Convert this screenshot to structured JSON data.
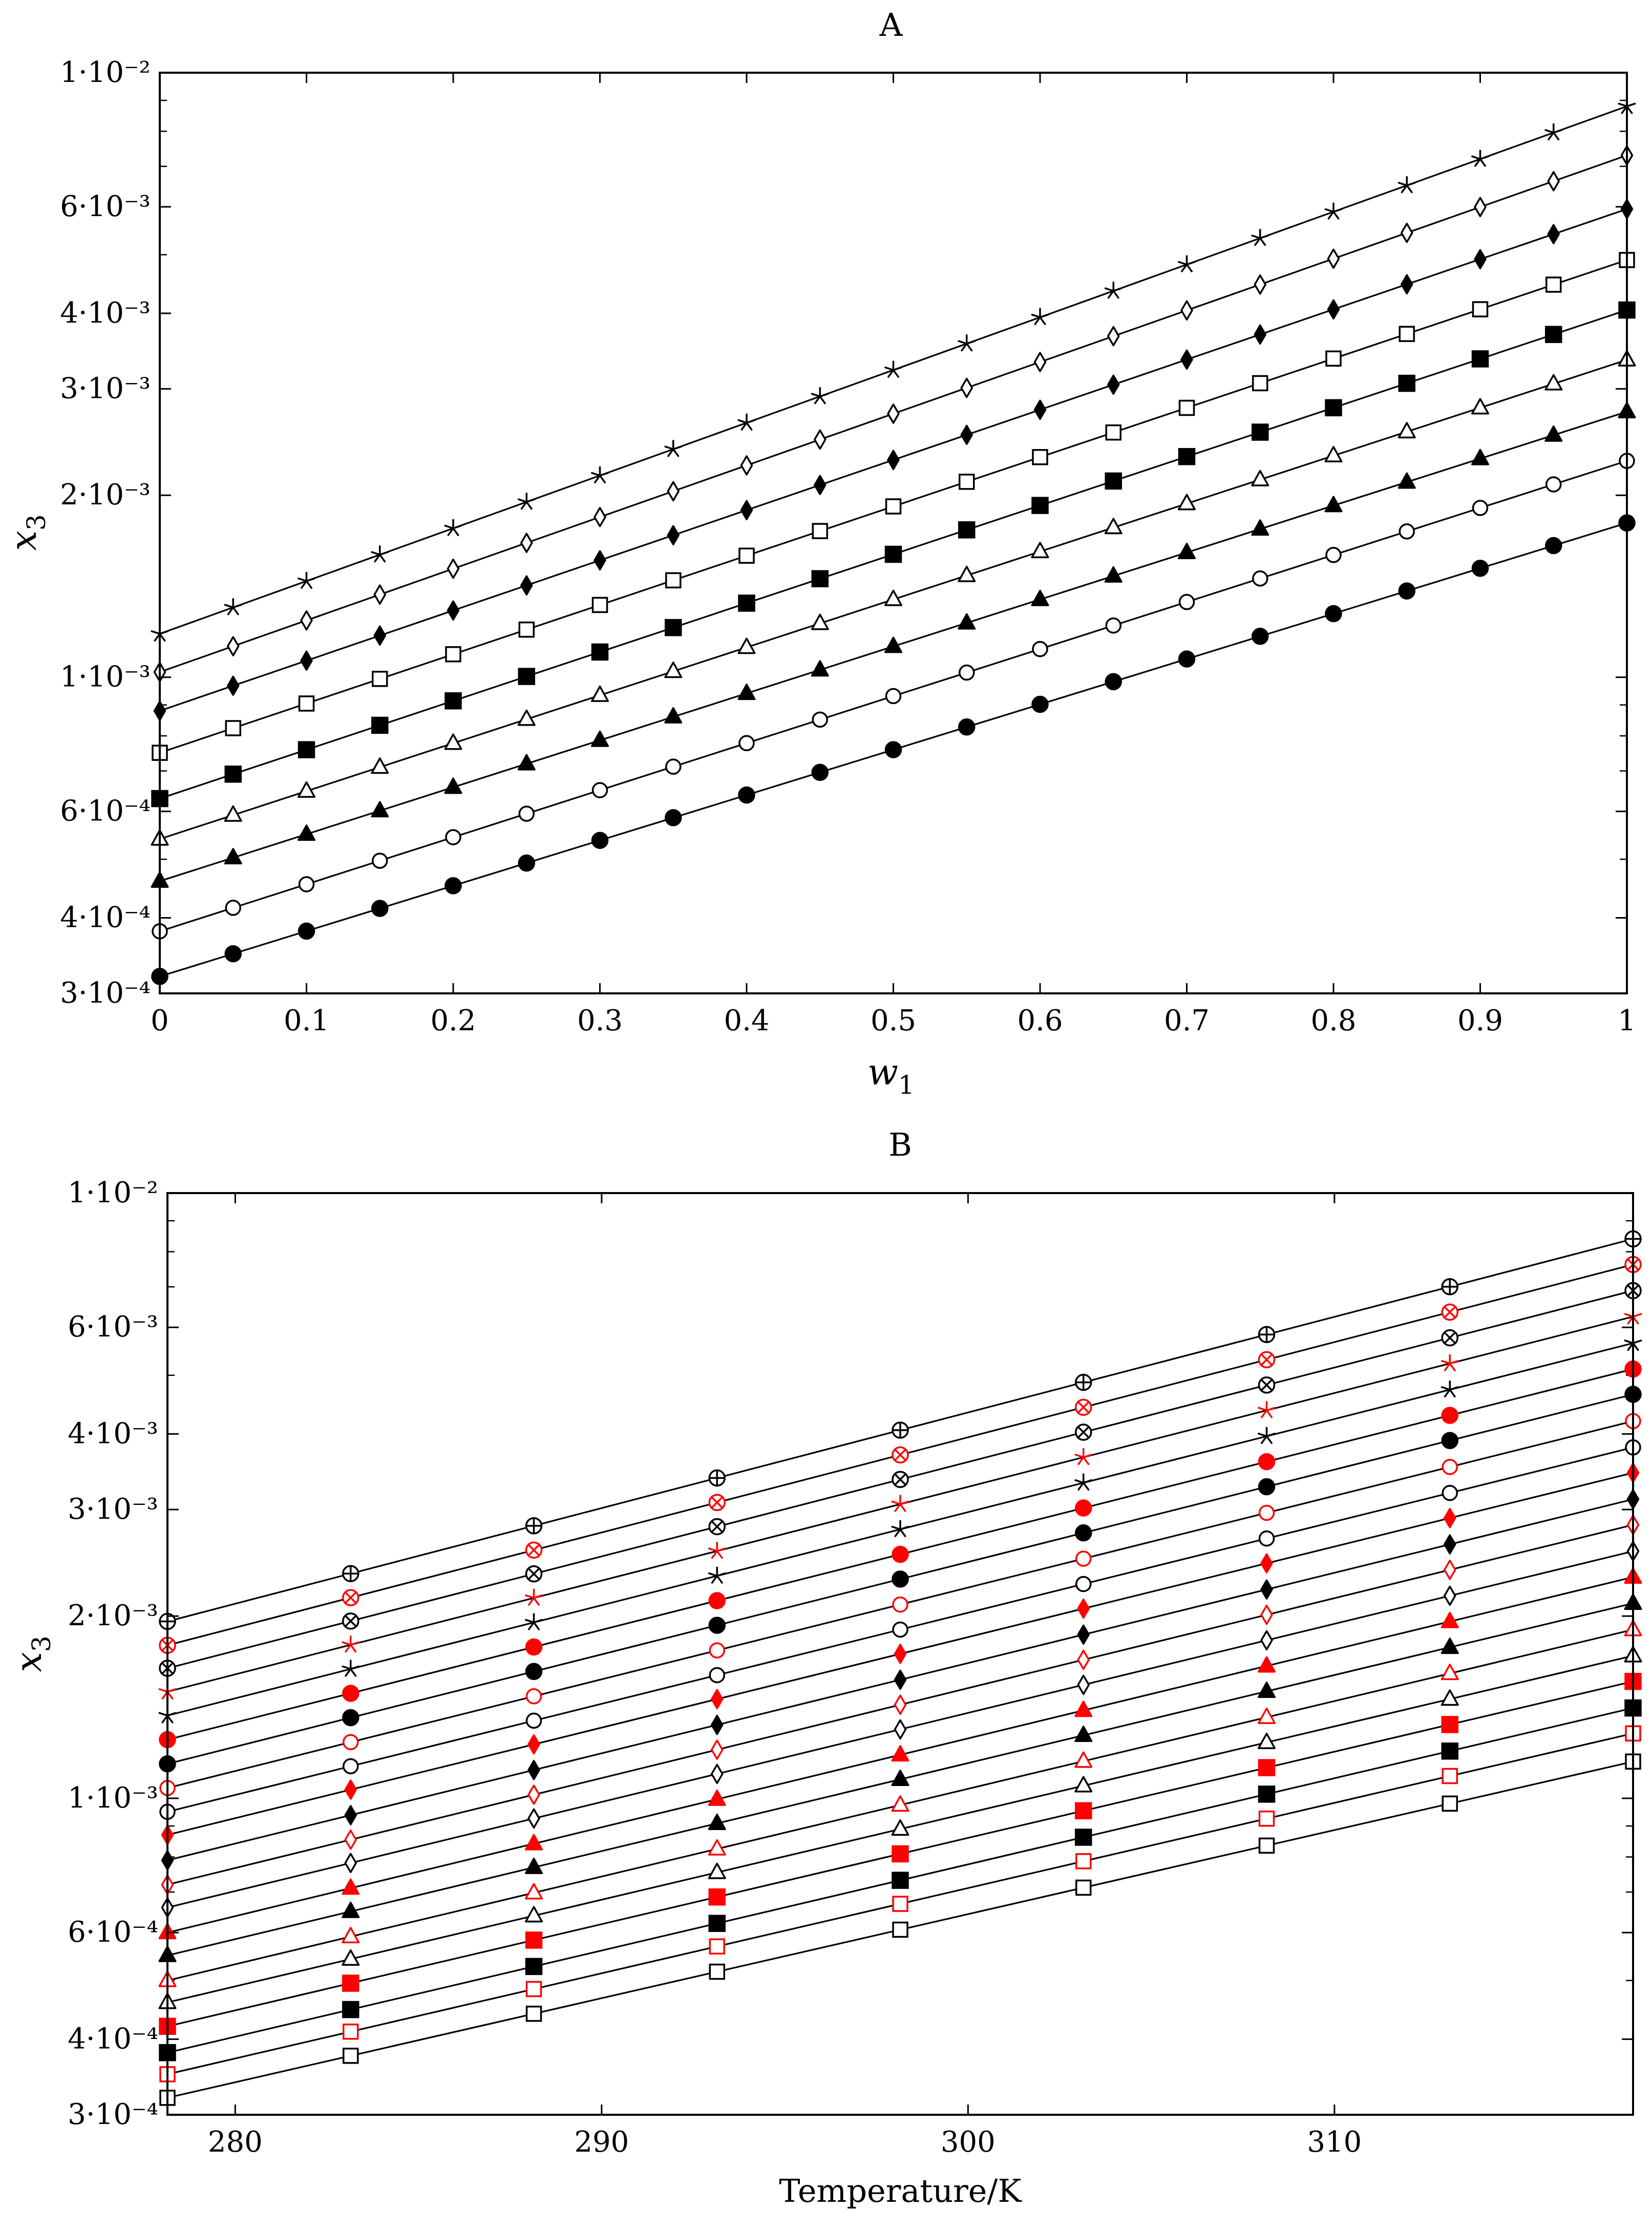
{
  "chart_data": [
    {
      "type": "scatter",
      "title": "A",
      "xlabel": "w",
      "xlabel_sub": "1",
      "ylabel": "x",
      "ylabel_sub": "3",
      "yscale": "log",
      "xlim": [
        0,
        1
      ],
      "ylim": [
        0.0003,
        0.01
      ],
      "xticks": [
        0,
        0.1,
        0.2,
        0.3,
        0.4,
        0.5,
        0.6,
        0.7,
        0.8,
        0.9,
        1
      ],
      "xtick_labels": [
        "0",
        "0.1",
        "0.2",
        "0.3",
        "0.4",
        "0.5",
        "0.6",
        "0.7",
        "0.8",
        "0.9",
        "1"
      ],
      "yticks": [
        0.0003,
        0.0004,
        0.0006,
        0.001,
        0.002,
        0.003,
        0.004,
        0.006,
        0.01
      ],
      "ytick_labels": [
        "3·10⁻⁴",
        "4·10⁻⁴",
        "6·10⁻⁴",
        "1·10⁻³",
        "2·10⁻³",
        "3·10⁻³",
        "4·10⁻³",
        "6·10⁻³",
        "1·10⁻²"
      ],
      "x": [
        0,
        0.05,
        0.1,
        0.15,
        0.2,
        0.25,
        0.3,
        0.35,
        0.4,
        0.45,
        0.5,
        0.55,
        0.6,
        0.65,
        0.7,
        0.75,
        0.8,
        0.85,
        0.9,
        0.95,
        1
      ],
      "series": [
        {
          "marker": "circle-filled",
          "color": "#000000",
          "start": 0.00032,
          "end": 0.0018
        },
        {
          "marker": "circle-open",
          "color": "#000000",
          "start": 0.00038,
          "end": 0.00228
        },
        {
          "marker": "triangle-filled",
          "color": "#000000",
          "start": 0.00046,
          "end": 0.00275
        },
        {
          "marker": "triangle-open",
          "color": "#000000",
          "start": 0.00054,
          "end": 0.00335
        },
        {
          "marker": "square-filled",
          "color": "#000000",
          "start": 0.00063,
          "end": 0.00405
        },
        {
          "marker": "square-open",
          "color": "#000000",
          "start": 0.00075,
          "end": 0.0049
        },
        {
          "marker": "diamond-filled",
          "color": "#000000",
          "start": 0.00088,
          "end": 0.00595
        },
        {
          "marker": "diamond-open",
          "color": "#000000",
          "start": 0.00102,
          "end": 0.0073
        },
        {
          "marker": "star",
          "color": "#000000",
          "start": 0.00118,
          "end": 0.0088
        }
      ]
    },
    {
      "type": "scatter",
      "title": "B",
      "xlabel": "Temperature/K",
      "ylabel": "x",
      "ylabel_sub": "3",
      "yscale": "log",
      "xlim": [
        278.15,
        318.15
      ],
      "ylim": [
        0.0003,
        0.01
      ],
      "xticks": [
        280,
        290,
        300,
        310
      ],
      "xtick_labels": [
        "280",
        "290",
        "300",
        "310"
      ],
      "yticks": [
        0.0003,
        0.0004,
        0.0006,
        0.001,
        0.002,
        0.003,
        0.004,
        0.006,
        0.01
      ],
      "ytick_labels": [
        "3·10⁻⁴",
        "4·10⁻⁴",
        "6·10⁻⁴",
        "1·10⁻³",
        "2·10⁻³",
        "3·10⁻³",
        "4·10⁻³",
        "6·10⁻³",
        "1·10⁻²"
      ],
      "x": [
        278.15,
        283.15,
        288.15,
        293.15,
        298.15,
        303.15,
        308.15,
        313.15,
        318.15
      ],
      "series": [
        {
          "marker": "square-open",
          "color": "#000000",
          "start": 0.00032,
          "end": 0.00115
        },
        {
          "marker": "square-open",
          "color": "#ff0000",
          "start": 0.00035,
          "end": 0.00128
        },
        {
          "marker": "square-filled",
          "color": "#000000",
          "start": 0.00038,
          "end": 0.00141
        },
        {
          "marker": "square-filled",
          "color": "#ff0000",
          "start": 0.00042,
          "end": 0.00156
        },
        {
          "marker": "triangle-open",
          "color": "#000000",
          "start": 0.00046,
          "end": 0.00172
        },
        {
          "marker": "triangle-open",
          "color": "#ff0000",
          "start": 0.0005,
          "end": 0.0019
        },
        {
          "marker": "triangle-filled",
          "color": "#000000",
          "start": 0.00055,
          "end": 0.0021
        },
        {
          "marker": "triangle-filled",
          "color": "#ff0000",
          "start": 0.0006,
          "end": 0.00232
        },
        {
          "marker": "diamond-open",
          "color": "#000000",
          "start": 0.00066,
          "end": 0.00256
        },
        {
          "marker": "diamond-open",
          "color": "#ff0000",
          "start": 0.00072,
          "end": 0.00283
        },
        {
          "marker": "diamond-filled",
          "color": "#000000",
          "start": 0.00079,
          "end": 0.00312
        },
        {
          "marker": "diamond-filled",
          "color": "#ff0000",
          "start": 0.00087,
          "end": 0.00345
        },
        {
          "marker": "circle-open",
          "color": "#000000",
          "start": 0.00095,
          "end": 0.0038
        },
        {
          "marker": "circle-open",
          "color": "#ff0000",
          "start": 0.00104,
          "end": 0.0042
        },
        {
          "marker": "circle-filled",
          "color": "#000000",
          "start": 0.00114,
          "end": 0.00465
        },
        {
          "marker": "circle-filled",
          "color": "#ff0000",
          "start": 0.00125,
          "end": 0.00512
        },
        {
          "marker": "star",
          "color": "#000000",
          "start": 0.00137,
          "end": 0.00565
        },
        {
          "marker": "star",
          "color": "#ff0000",
          "start": 0.0015,
          "end": 0.00625
        },
        {
          "marker": "circle-cross",
          "color": "#000000",
          "start": 0.00164,
          "end": 0.0069
        },
        {
          "marker": "circle-cross",
          "color": "#ff0000",
          "start": 0.00179,
          "end": 0.00762
        },
        {
          "marker": "circle-plus",
          "color": "#000000",
          "start": 0.00196,
          "end": 0.0084
        }
      ]
    }
  ]
}
